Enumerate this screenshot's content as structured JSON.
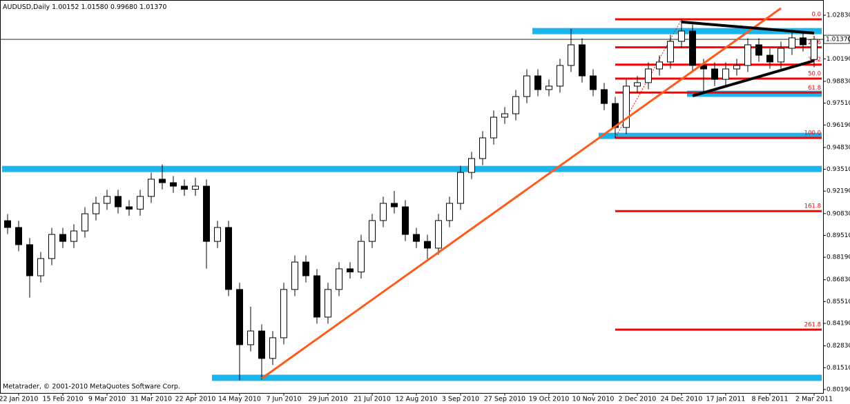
{
  "chart_data": {
    "type": "candlestick",
    "symbol": "AUDUSD,Daily",
    "last_bar_labels": [
      "1.00152",
      "1.01580",
      "0.99680",
      "1.01370"
    ],
    "credit": "Metatrader, © 2001-2010 MetaQuotes Software Corp.",
    "x": [
      null,
      "22 Jan 2010",
      null,
      null,
      null,
      "15 Feb 2010",
      null,
      null,
      null,
      "9 Mar 2010",
      null,
      null,
      null,
      "31 Mar 2010",
      null,
      null,
      null,
      "22 Apr 2010",
      null,
      null,
      null,
      "14 May 2010",
      null,
      null,
      null,
      "7 Jun 2010",
      null,
      null,
      null,
      "29 Jun 2010",
      null,
      null,
      null,
      "21 Jul 2010",
      null,
      null,
      null,
      "12 Aug 2010",
      null,
      null,
      null,
      "3 Sep 2010",
      null,
      null,
      null,
      "27 Sep 2010",
      null,
      null,
      null,
      "19 Oct 2010",
      null,
      null,
      null,
      "10 Nov 2010",
      null,
      null,
      null,
      "2 Dec 2010",
      null,
      null,
      null,
      "24 Dec 2010",
      null,
      null,
      null,
      "17 Jan 2011",
      null,
      null,
      null,
      "8 Feb 2011",
      null,
      null,
      null,
      "2 Mar 2011"
    ],
    "ohlc": {
      "open": [
        0.904,
        0.8999,
        0.8895,
        0.8707,
        0.8811,
        0.8957,
        0.8915,
        0.8978,
        0.9082,
        0.9145,
        0.9187,
        0.9124,
        0.911,
        0.9187,
        0.9291,
        0.927,
        0.9249,
        0.923,
        0.9249,
        0.8915,
        0.8999,
        0.8624,
        0.829,
        0.8373,
        0.8207,
        0.8332,
        0.8624,
        0.879,
        0.8707,
        0.8457,
        0.8624,
        0.8749,
        0.873,
        0.8915,
        0.9041,
        0.9145,
        0.9124,
        0.8957,
        0.8915,
        0.8874,
        0.9041,
        0.9145,
        0.9332,
        0.9416,
        0.9541,
        0.9666,
        0.9687,
        0.9791,
        0.9916,
        0.9833,
        0.9854,
        0.9979,
        1.0104,
        0.9916,
        0.9833,
        0.9749,
        0.9604,
        0.9854,
        0.9875,
        0.9958,
        1.0,
        1.0125,
        1.0187,
        0.9979,
        0.9958,
        0.9895,
        0.9958,
        0.9979,
        1.0104,
        1.0041,
        1.0,
        1.0083,
        1.0146,
        1.00152
      ],
      "high": [
        0.908,
        0.9039,
        0.8935,
        0.8851,
        0.8997,
        0.8997,
        0.9018,
        0.9122,
        0.9185,
        0.9227,
        0.9227,
        0.9164,
        0.9227,
        0.9331,
        0.938,
        0.931,
        0.9289,
        0.93,
        0.9289,
        0.9039,
        0.9039,
        0.8664,
        0.852,
        0.8413,
        0.8372,
        0.8664,
        0.883,
        0.883,
        0.8747,
        0.8664,
        0.8789,
        0.8789,
        0.8955,
        0.9081,
        0.9185,
        0.922,
        0.9164,
        0.8997,
        0.8955,
        0.9081,
        0.9185,
        0.9372,
        0.9456,
        0.9581,
        0.9706,
        0.9727,
        0.9831,
        0.9956,
        0.9956,
        0.9894,
        1.0019,
        1.02,
        1.0144,
        0.9956,
        0.9873,
        0.9789,
        0.9894,
        0.9915,
        0.9998,
        1.004,
        1.0165,
        1.0258,
        1.0227,
        1.0019,
        0.9998,
        0.9998,
        1.0019,
        1.0144,
        1.0144,
        1.0081,
        1.0123,
        1.0186,
        1.0186,
        1.0158
      ],
      "low": [
        0.8959,
        0.8855,
        0.8575,
        0.8667,
        0.8771,
        0.8875,
        0.8875,
        0.8938,
        0.9042,
        0.9105,
        0.9084,
        0.907,
        0.907,
        0.9147,
        0.923,
        0.9209,
        0.919,
        0.919,
        0.875,
        0.8875,
        0.8584,
        0.8075,
        0.825,
        0.808,
        0.8167,
        0.8292,
        0.8584,
        0.8667,
        0.8417,
        0.8417,
        0.8584,
        0.869,
        0.869,
        0.8875,
        0.9001,
        0.9084,
        0.8917,
        0.8875,
        0.881,
        0.8834,
        0.9001,
        0.9105,
        0.9292,
        0.9376,
        0.9501,
        0.9626,
        0.9647,
        0.9751,
        0.9793,
        0.9793,
        0.9814,
        0.9939,
        0.9876,
        0.9793,
        0.9709,
        0.9541,
        0.9564,
        0.9814,
        0.9835,
        0.9918,
        0.996,
        1.0085,
        0.9939,
        0.981,
        0.9855,
        0.9855,
        0.9918,
        0.9939,
        1.0001,
        0.996,
        0.996,
        1.0043,
        1.0064,
        0.9968
      ],
      "close": [
        0.8999,
        0.8895,
        0.8707,
        0.8811,
        0.8957,
        0.8915,
        0.8978,
        0.9082,
        0.9145,
        0.9187,
        0.9124,
        0.911,
        0.9187,
        0.9291,
        0.927,
        0.9249,
        0.923,
        0.9249,
        0.8915,
        0.8999,
        0.8624,
        0.829,
        0.8373,
        0.8207,
        0.8332,
        0.8624,
        0.879,
        0.8707,
        0.8457,
        0.8624,
        0.8749,
        0.873,
        0.8915,
        0.9041,
        0.9145,
        0.9124,
        0.8957,
        0.8915,
        0.8874,
        0.9041,
        0.9145,
        0.9332,
        0.9416,
        0.9541,
        0.9666,
        0.9687,
        0.9791,
        0.9916,
        0.9833,
        0.9854,
        0.9979,
        1.0104,
        0.9916,
        0.9833,
        0.9749,
        0.9604,
        0.9854,
        0.9875,
        0.9958,
        1.0,
        1.0125,
        1.0187,
        0.9979,
        0.9958,
        0.9895,
        0.9958,
        0.9979,
        1.0104,
        1.0041,
        1.0,
        1.0083,
        1.0146,
        1.0104,
        1.0137
      ]
    },
    "ylim": [
      0.7998,
      1.0375
    ],
    "yticks": [
      {
        "value": 1.0283,
        "label": "1.02830"
      },
      {
        "value": 1.0019,
        "label": "1.00190"
      },
      {
        "value": 0.9883,
        "label": "0.98830"
      },
      {
        "value": 0.9751,
        "label": "0.97510"
      },
      {
        "value": 0.9619,
        "label": "0.96190"
      },
      {
        "value": 0.9483,
        "label": "0.94830"
      },
      {
        "value": 0.9351,
        "label": "0.93510"
      },
      {
        "value": 0.9219,
        "label": "0.92190"
      },
      {
        "value": 0.9083,
        "label": "0.90830"
      },
      {
        "value": 0.8951,
        "label": "0.89510"
      },
      {
        "value": 0.8819,
        "label": "0.88190"
      },
      {
        "value": 0.8683,
        "label": "0.86830"
      },
      {
        "value": 0.8551,
        "label": "0.85510"
      },
      {
        "value": 0.8419,
        "label": "0.84190"
      },
      {
        "value": 0.8283,
        "label": "0.82830"
      },
      {
        "value": 0.8151,
        "label": "0.81510"
      },
      {
        "value": 0.8019,
        "label": "0.80190"
      }
    ],
    "support_levels": {
      "color": "#1cb4ec",
      "items": [
        {
          "price": 1.0187,
          "from_bar": 48
        },
        {
          "price": 0.9808,
          "from_bar": 62
        },
        {
          "price": 0.9553,
          "from_bar": 54
        },
        {
          "price": 0.9353,
          "from_bar": 0
        },
        {
          "price": 0.809,
          "from_bar": 19
        }
      ]
    },
    "trend_lines": [
      {
        "color": "#ff5a1e",
        "from_bar": 23,
        "from_price": 0.8086,
        "to_bar": 70,
        "to_price": 1.0325
      },
      {
        "color": "#000000",
        "from_bar": 61,
        "from_price": 1.0242,
        "to_bar": 73,
        "to_price": 1.0175
      },
      {
        "color": "#000000",
        "from_bar": 62,
        "from_price": 0.9795,
        "to_bar": 73,
        "to_price": 1.0008
      }
    ],
    "fibonacci": {
      "color": "#ff0000",
      "high": 1.0258,
      "low": 0.9541,
      "from_bar": 55,
      "to_bar": 61,
      "levels": [
        {
          "value": 0,
          "label": "0.0"
        },
        23.6,
        38.2,
        {
          "value": 50,
          "label": "50.0"
        },
        61.8,
        {
          "value": 100,
          "label": "100.0"
        },
        161.8,
        261.8
      ]
    }
  }
}
